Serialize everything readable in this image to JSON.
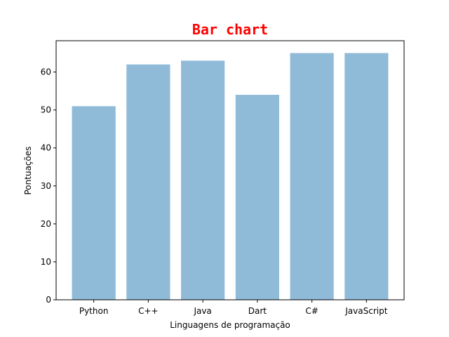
{
  "colors": {
    "bar": "#8fbad8",
    "title": "#ff0000",
    "axis": "#000000",
    "background": "#ffffff"
  },
  "chart_data": {
    "type": "bar",
    "title": "Bar chart",
    "xlabel": "Linguagens de programação",
    "ylabel": "Pontuações",
    "categories": [
      "Python",
      "C++",
      "Java",
      "Dart",
      "C#",
      "JavaScript"
    ],
    "values": [
      51,
      62,
      63,
      54,
      65,
      65
    ],
    "ylim": [
      0,
      68.25
    ],
    "yticks": [
      0,
      10,
      20,
      30,
      40,
      50,
      60
    ],
    "grid": false,
    "legend": "none"
  }
}
